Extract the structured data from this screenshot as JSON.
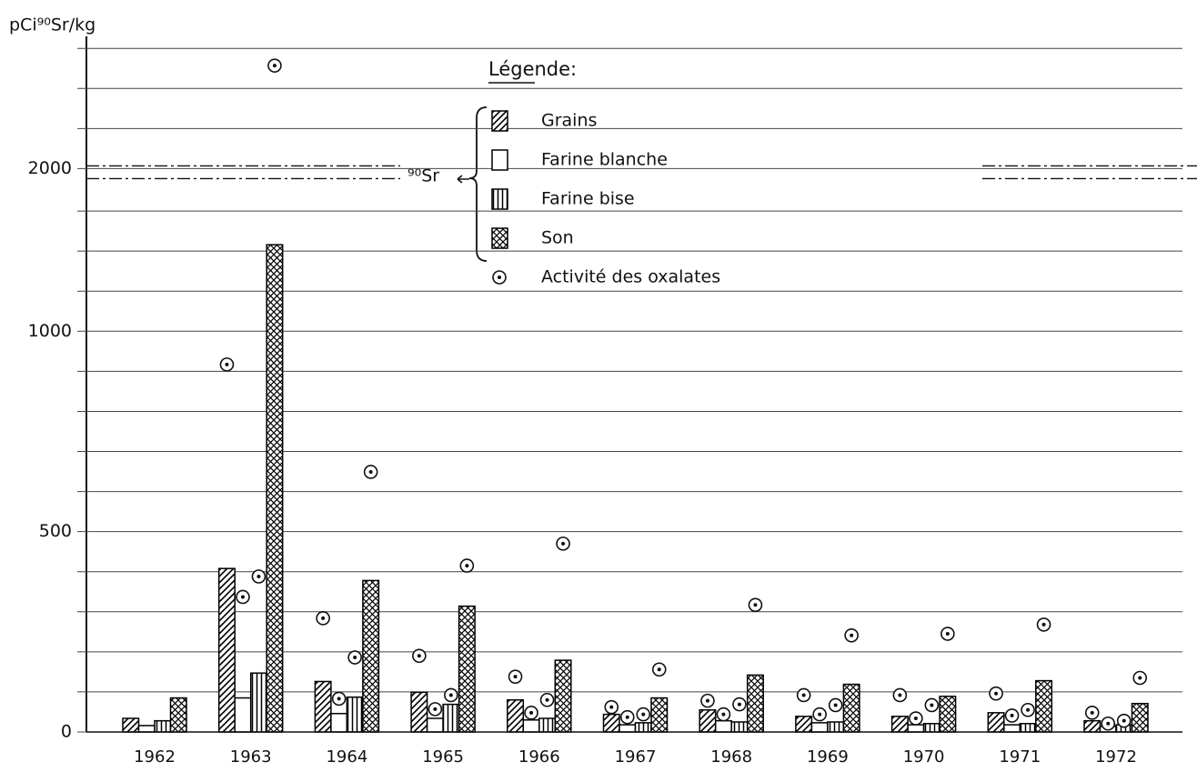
{
  "chart_data": {
    "type": "bar",
    "ylabel": "pCi⁹⁰Sr/kg",
    "legend_title": "Légende:",
    "annotation": "⁹⁰Sr",
    "categories": [
      "1962",
      "1963",
      "1964",
      "1965",
      "1966",
      "1967",
      "1968",
      "1969",
      "1970",
      "1971",
      "1972"
    ],
    "series": [
      {
        "name": "Grains",
        "color": "#000000",
        "pattern": "diagonal",
        "values": [
          34,
          408,
          126,
          99,
          80,
          44,
          55,
          39,
          39,
          48,
          28
        ],
        "oxalate_values": [
          null,
          917,
          284,
          190,
          138,
          62,
          78,
          92,
          92,
          96,
          48
        ]
      },
      {
        "name": "Farine blanche",
        "color": "#000000",
        "pattern": "none",
        "values": [
          16,
          85,
          46,
          34,
          30,
          18,
          28,
          23,
          18,
          18,
          14
        ],
        "oxalate_values": [
          null,
          337,
          83,
          57,
          48,
          37,
          44,
          44,
          34,
          41,
          21
        ]
      },
      {
        "name": "Farine bise",
        "color": "#000000",
        "pattern": "vertical",
        "values": [
          28,
          147,
          87,
          69,
          34,
          23,
          25,
          25,
          21,
          21,
          18
        ],
        "oxalate_values": [
          null,
          388,
          186,
          92,
          80,
          44,
          69,
          67,
          67,
          55,
          28
        ]
      },
      {
        "name": "Son",
        "color": "#000000",
        "pattern": "crosshatch",
        "values": [
          85,
          1216,
          378,
          314,
          179,
          85,
          142,
          119,
          89,
          128,
          71
        ],
        "oxalate_values": [
          null,
          2257,
          649,
          415,
          470,
          156,
          317,
          241,
          245,
          268,
          135
        ]
      }
    ],
    "oxalate_name": "Activité des oxalates",
    "ylim": [
      0,
      2330
    ],
    "axis_break": [
      1390,
      2000
    ],
    "yticks": [
      0,
      500,
      1000,
      2000
    ],
    "minor_yticks": [
      100,
      200,
      300,
      400,
      600,
      700,
      800,
      900,
      1100,
      1200,
      1300,
      2100,
      2200,
      2300
    ],
    "grid": true
  }
}
